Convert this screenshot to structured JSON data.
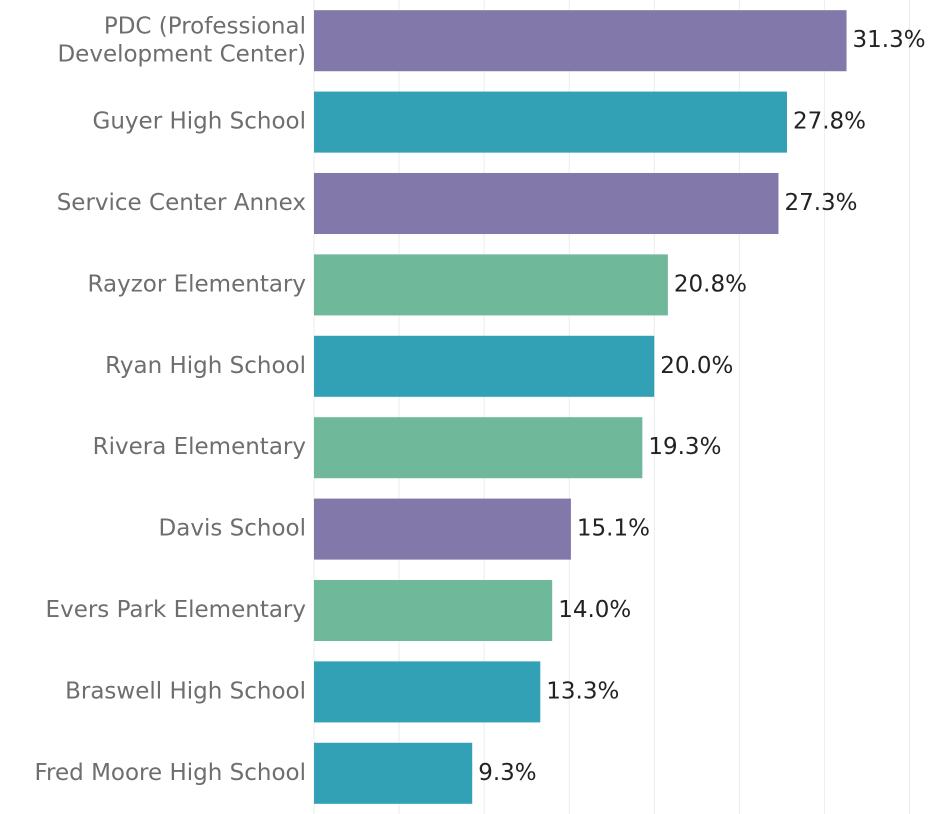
{
  "chart_data": {
    "type": "bar",
    "orientation": "horizontal",
    "categories": [
      "PDC (Professional Development Center)",
      "Guyer High School",
      "Service Center Annex",
      "Rayzor Elementary",
      "Ryan High School",
      "Rivera Elementary",
      "Davis School",
      "Evers Park Elementary",
      "Braswell High School",
      "Fred Moore High School"
    ],
    "values": [
      31.3,
      27.8,
      27.3,
      20.8,
      20.0,
      19.3,
      15.1,
      14.0,
      13.3,
      9.3
    ],
    "value_labels": [
      "31.3%",
      "27.8%",
      "27.3%",
      "20.8%",
      "20.0%",
      "19.3%",
      "15.1%",
      "14.0%",
      "13.3%",
      "9.3%"
    ],
    "colors": [
      "#8278aa",
      "#33a1b5",
      "#8278aa",
      "#6fb99a",
      "#33a1b5",
      "#6fb99a",
      "#8278aa",
      "#6fb99a",
      "#33a1b5",
      "#33a1b5"
    ],
    "xlim": [
      0,
      36.5
    ],
    "xticks": [
      0,
      5,
      10,
      15,
      20,
      25,
      30,
      35
    ],
    "grid": true
  }
}
